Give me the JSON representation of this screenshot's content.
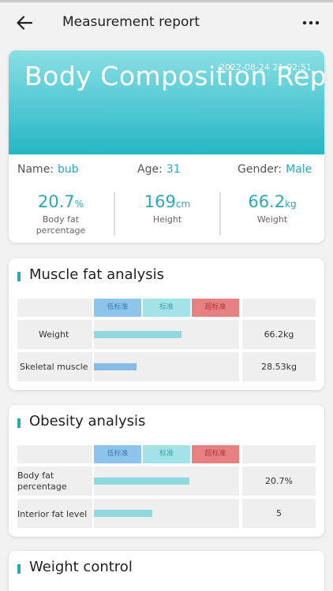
{
  "header": {
    "title": "Measurement report"
  },
  "report": {
    "date": "2022-08-24 21:02:51",
    "title": "Body Composition Report",
    "name_label": "Name:",
    "name_value": "bub",
    "age_label": "Age:",
    "age_value": "31",
    "gender_label": "Gender:",
    "gender_value": "Male",
    "metrics": [
      {
        "value": "20.7",
        "unit": "%",
        "label": "Body fat percentage"
      },
      {
        "value": "169",
        "unit": "cm",
        "label": "Height"
      },
      {
        "value": "66.2",
        "unit": "kg",
        "label": "Weight"
      }
    ]
  },
  "standards": {
    "low": "低标准",
    "normal": "标准",
    "high": "超标准"
  },
  "muscle_fat": {
    "title": "Muscle fat analysis",
    "rows": [
      {
        "label": "Weight",
        "value": "66.2kg",
        "bar_fraction": 0.605,
        "bar_color": "#8fd9de"
      },
      {
        "label": "Skeletal muscle",
        "value": "28.53kg",
        "bar_fraction": 0.295,
        "bar_color": "#86bde6"
      }
    ]
  },
  "obesity": {
    "title": "Obesity analysis",
    "rows": [
      {
        "label": "Body fat percentage",
        "value": "20.7%",
        "bar_fraction": 0.655,
        "bar_color": "#8fd9de"
      },
      {
        "label": "Interior fat level",
        "value": "5",
        "bar_fraction": 0.4,
        "bar_color": "#8fd9de"
      }
    ]
  },
  "weight_control": {
    "title": "Weight control"
  }
}
